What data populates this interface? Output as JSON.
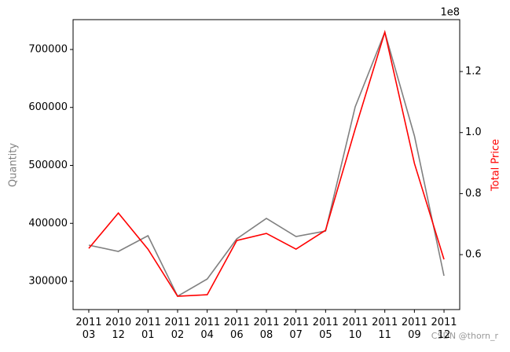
{
  "chart_data": {
    "type": "line",
    "categories": [
      "2011\n03",
      "2010\n12",
      "2011\n01",
      "2011\n02",
      "2011\n04",
      "2011\n06",
      "2011\n08",
      "2011\n07",
      "2011\n05",
      "2011\n10",
      "2011\n11",
      "2011\n09",
      "2011\n12"
    ],
    "series": [
      {
        "name": "Quantity",
        "color": "gray",
        "values": [
          362400,
          351500,
          378600,
          274200,
          304000,
          373200,
          408500,
          377300,
          386800,
          601000,
          729800,
          550800,
          309500
        ]
      },
      {
        "name": "Total Price",
        "color": "red",
        "axis": "y2",
        "values": [
          62060000,
          73650000,
          61800000,
          46350000,
          46870000,
          64640000,
          66950000,
          61800000,
          67980000,
          101200000,
          132880000,
          89870000,
          58450000
        ]
      }
    ],
    "ylim": [
      251200,
      751500
    ],
    "yticks": [
      300000,
      400000,
      500000,
      600000,
      700000
    ],
    "y2lim": [
      42000000,
      137000000
    ],
    "y2ticks": [
      {
        "value": 60000000,
        "label": "0.6"
      },
      {
        "value": 80000000,
        "label": "0.8"
      },
      {
        "value": 100000000,
        "label": "1.0"
      },
      {
        "value": 120000000,
        "label": "1.2"
      }
    ],
    "y2_offset_label": "1e8",
    "watermark": "CSDN @thorn_r"
  }
}
